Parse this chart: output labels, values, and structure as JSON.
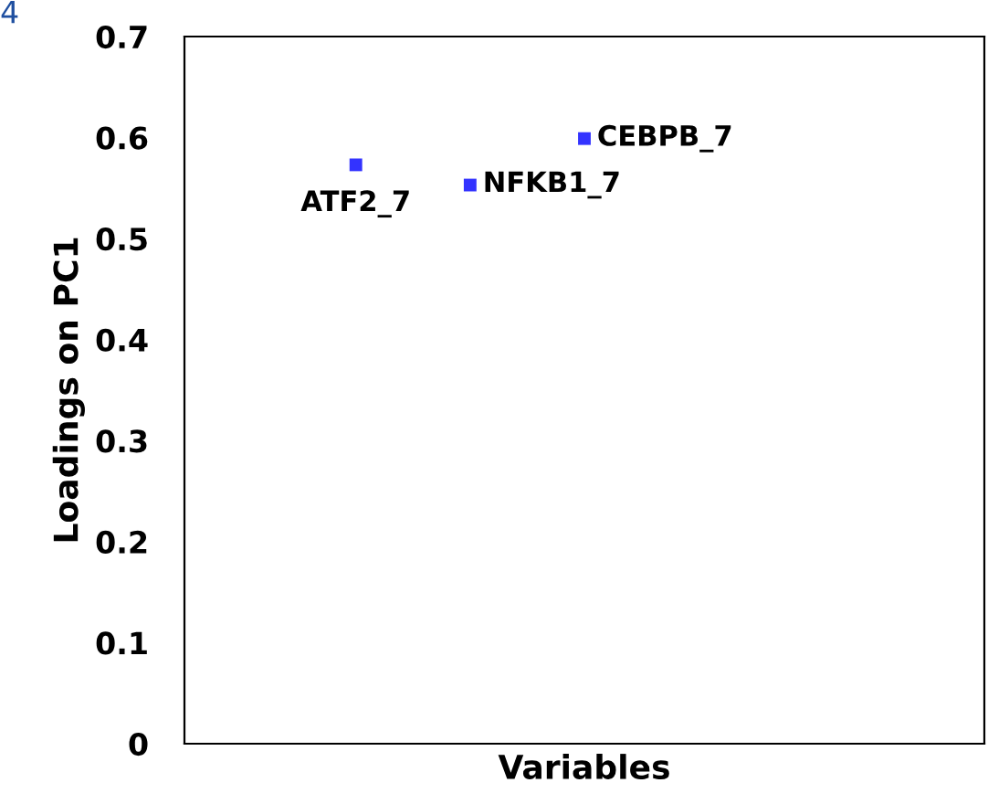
{
  "chart_data": {
    "type": "scatter",
    "xlabel": "Variables",
    "ylabel": "Loadings on PC1",
    "categories": [
      null,
      null,
      null,
      null,
      null,
      null,
      null
    ],
    "series": [
      {
        "color": "#3333ff",
        "values": [
          null,
          0.573,
          0.553,
          0.599,
          null,
          null,
          null
        ]
      }
    ],
    "marker": "square",
    "ylim": [
      0,
      0.7
    ],
    "yticks": [
      0,
      0.1,
      0.2,
      0.3,
      0.4,
      0.5,
      0.6,
      0.7
    ],
    "grid": false,
    "tick_labels": "y",
    "annotations": [
      "ATF2_7",
      "NFKB1_7",
      "CEBPB_7",
      "4"
    ]
  }
}
